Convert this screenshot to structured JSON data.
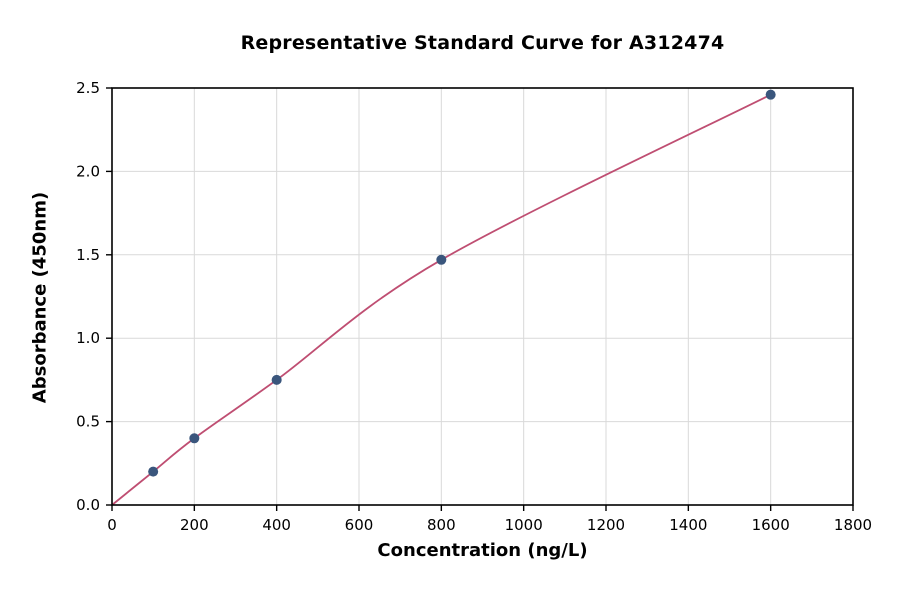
{
  "chart_data": {
    "type": "scatter",
    "title": "Representative Standard Curve for A312474",
    "xlabel": "Concentration (ng/L)",
    "ylabel": "Absorbance (450nm)",
    "xlim": [
      0,
      1800
    ],
    "ylim": [
      0,
      2.5
    ],
    "x_ticks": [
      0,
      200,
      400,
      600,
      800,
      1000,
      1200,
      1400,
      1600,
      1800
    ],
    "x_tick_labels": [
      "0",
      "200",
      "400",
      "600",
      "800",
      "1000",
      "1200",
      "1400",
      "1600",
      "1800"
    ],
    "y_ticks": [
      0,
      0.5,
      1.0,
      1.5,
      2.0,
      2.5
    ],
    "y_tick_labels": [
      "0.0",
      "0.5",
      "1.0",
      "1.5",
      "2.0",
      "2.5"
    ],
    "grid": true,
    "legend": "none",
    "series": [
      {
        "name": "standard-curve",
        "x": [
          0,
          100,
          200,
          400,
          800,
          1600
        ],
        "y": [
          0.0,
          0.2,
          0.4,
          0.75,
          1.47,
          2.46
        ]
      }
    ],
    "marker_points": {
      "x": [
        100,
        200,
        400,
        800,
        1600
      ],
      "y": [
        0.2,
        0.4,
        0.75,
        1.47,
        2.46
      ]
    },
    "colors": {
      "line": "#bf4e72",
      "marker": "#3a567d",
      "grid": "#d9d9d9",
      "spine": "#000000",
      "background": "#ffffff"
    }
  }
}
